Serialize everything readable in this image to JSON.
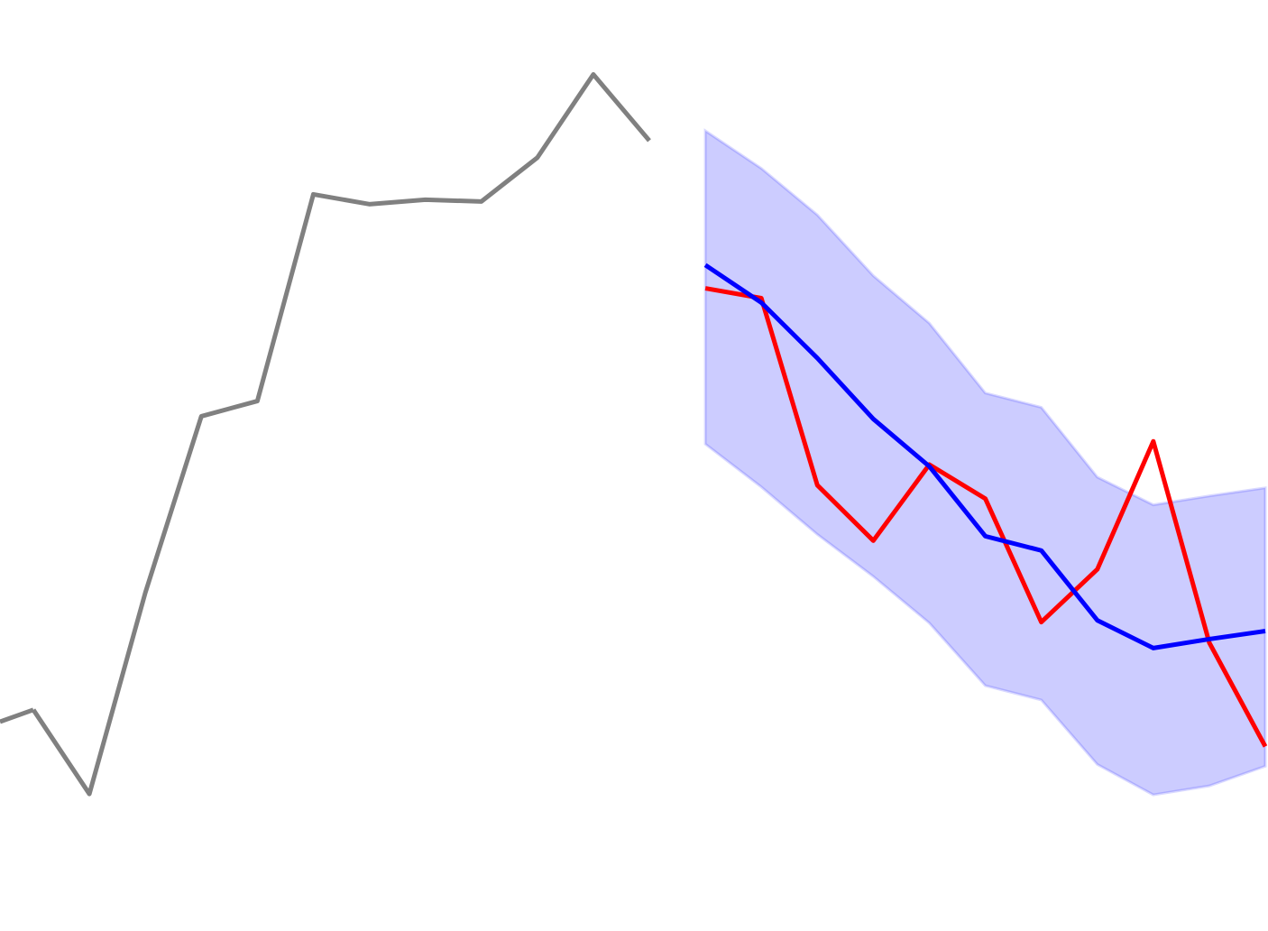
{
  "chart_data": {
    "type": "line",
    "title": "",
    "xlabel": "",
    "ylabel": "",
    "grid": false,
    "x_axis_visible": false,
    "y_axis_visible": false,
    "xlim": [
      0,
      22
    ],
    "ylim": [
      0,
      100
    ],
    "series": [
      {
        "role": "history",
        "color": "#808080",
        "x": [
          0,
          1,
          2,
          3,
          4,
          5,
          6,
          7,
          8,
          9,
          10,
          11
        ],
        "y": [
          22.7,
          13.3,
          35.8,
          55.5,
          57.2,
          80.3,
          79.2,
          79.7,
          79.5,
          84.4,
          93.7,
          86.3
        ]
      },
      {
        "role": "observed",
        "color": "#ff0000",
        "x": [
          12,
          13,
          14,
          15,
          16,
          17,
          18,
          19,
          20,
          21,
          22
        ],
        "y": [
          69.8,
          68.7,
          47.8,
          41.6,
          50.1,
          46.3,
          32.5,
          38.4,
          52.7,
          30.2,
          18.6
        ]
      },
      {
        "role": "forecast",
        "color": "#0000ff",
        "x": [
          12,
          13,
          14,
          15,
          16,
          17,
          18,
          19,
          20,
          21,
          22
        ],
        "y": [
          72.4,
          68.2,
          62.0,
          55.2,
          49.9,
          42.1,
          40.5,
          32.7,
          29.6,
          30.6,
          31.5
        ]
      }
    ],
    "band": {
      "color": "#0000ff",
      "opacity": 0.2,
      "x": [
        12,
        13,
        14,
        15,
        16,
        17,
        18,
        19,
        20,
        21,
        22
      ],
      "lower": [
        52.4,
        47.6,
        42.3,
        37.6,
        32.4,
        25.4,
        23.8,
        16.6,
        13.2,
        14.2,
        16.4
      ],
      "upper": [
        87.4,
        83.2,
        78.0,
        71.2,
        65.9,
        58.1,
        56.5,
        48.7,
        45.6,
        46.6,
        47.5
      ]
    }
  }
}
